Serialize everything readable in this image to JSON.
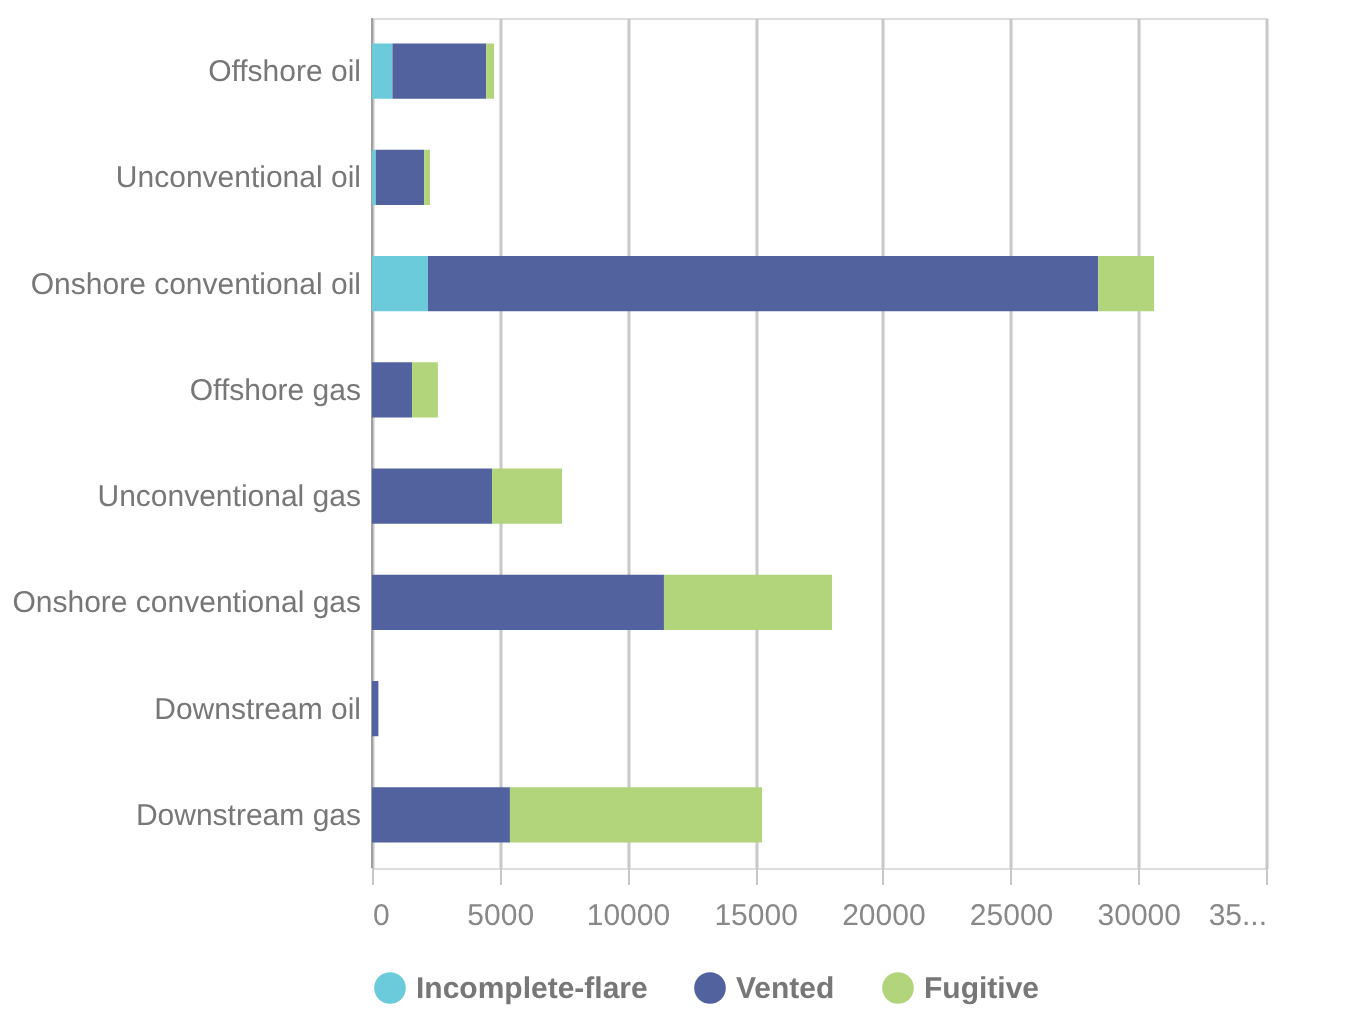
{
  "chart_data": {
    "type": "bar",
    "orientation": "horizontal",
    "stacked": true,
    "categories": [
      "Offshore oil",
      "Unconventional oil",
      "Onshore conventional oil",
      "Offshore gas",
      "Unconventional gas",
      "Onshore conventional gas",
      "Downstream oil",
      "Downstream gas"
    ],
    "series": [
      {
        "name": "Incomplete-flare",
        "color": "#6bcbdb",
        "values": [
          800,
          150,
          2190,
          0,
          0,
          0,
          0,
          0
        ]
      },
      {
        "name": "Vented",
        "color": "#52629e",
        "values": [
          3670,
          1890,
          26240,
          1570,
          4700,
          11430,
          250,
          5400
        ]
      },
      {
        "name": "Fugitive",
        "color": "#b2d57b",
        "values": [
          310,
          230,
          2190,
          1010,
          2740,
          6580,
          0,
          9870
        ]
      }
    ],
    "xlim": [
      0,
      35000
    ],
    "xticks": [
      0,
      5000,
      10000,
      15000,
      20000,
      25000,
      30000,
      {
        "value": 35000,
        "label": "35..."
      }
    ],
    "grid": "x",
    "legend": "bottom"
  }
}
